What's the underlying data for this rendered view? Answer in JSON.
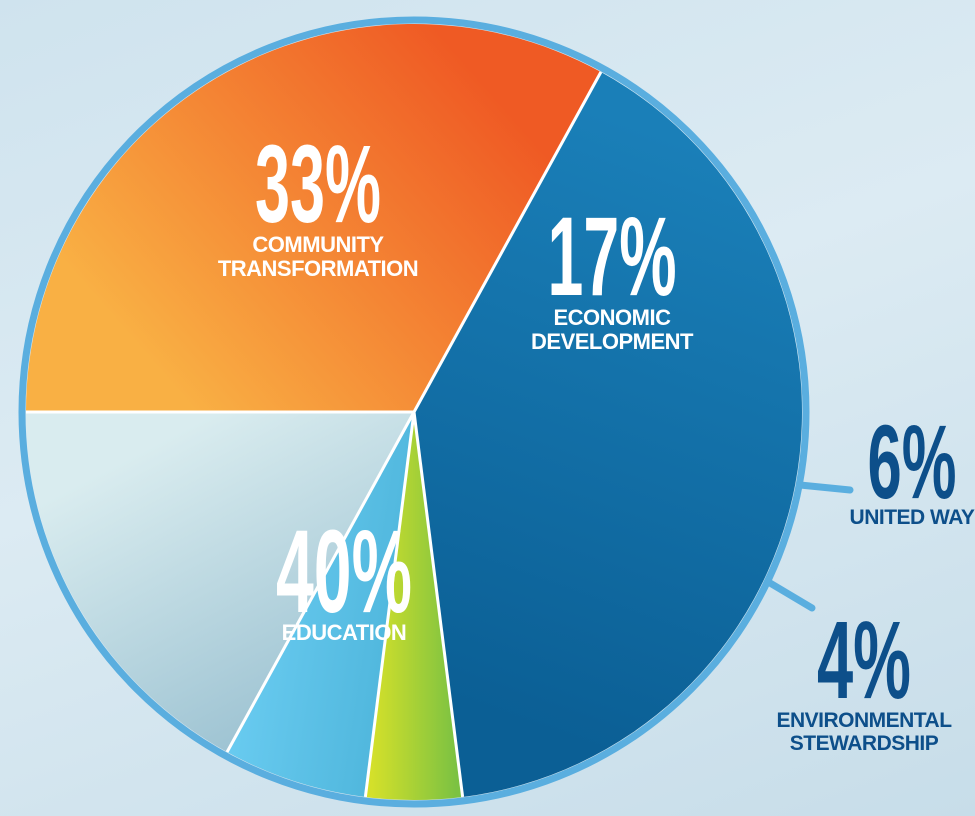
{
  "chart_data": {
    "type": "pie",
    "start_angle_deg": 0,
    "direction": "counterclockwise",
    "slices": [
      {
        "label": [
          "COMMUNITY",
          "TRANSFORMATION"
        ],
        "value": 33,
        "display": "33%",
        "color_start": "#f9b044",
        "color_end": "#ef5a24",
        "text_color": "#ffffff",
        "label_style": "inside"
      },
      {
        "label": [
          "EDUCATION"
        ],
        "value": 40,
        "display": "40%",
        "color_start": "#1a7fb8",
        "color_end": "#0b5f95",
        "text_color": "#ffffff",
        "label_style": "inside"
      },
      {
        "label": [
          "ENVIRONMENTAL",
          "STEWARDSHIP"
        ],
        "value": 4,
        "display": "4%",
        "color_start": "#7cc242",
        "color_end": "#d4e02a",
        "text_color": "#0d4f8a",
        "label_style": "outside"
      },
      {
        "label": [
          "UNITED WAY"
        ],
        "value": 6,
        "display": "6%",
        "color_start": "#4fb6dc",
        "color_end": "#6bcdf2",
        "text_color": "#0d4f8a",
        "label_style": "outside"
      },
      {
        "label": [
          "ECONOMIC",
          "DEVELOPMENT"
        ],
        "value": 17,
        "display": "17%",
        "color_start": "#9fc4d3",
        "color_end": "#d9ecef",
        "text_color": "#ffffff",
        "label_style": "inside"
      }
    ],
    "colors": {
      "ring": "#5aaedf",
      "divider": "#ffffff",
      "callout_text": "#0d4f8a"
    }
  }
}
